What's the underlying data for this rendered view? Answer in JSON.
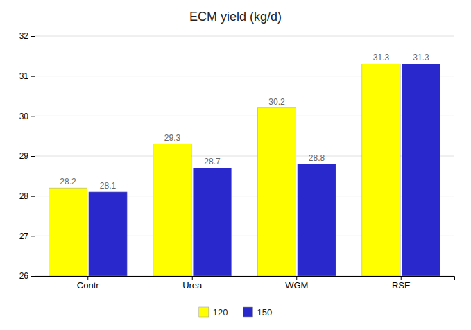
{
  "chart_data": {
    "type": "bar",
    "title": "ECM yield (kg/d)",
    "categories": [
      "Contr",
      "Urea",
      "WGM",
      "RSE"
    ],
    "series": [
      {
        "name": "120",
        "color": "#FFFF00",
        "values": [
          28.2,
          29.3,
          30.2,
          31.3
        ]
      },
      {
        "name": "150",
        "color": "#2828CC",
        "values": [
          28.1,
          28.7,
          28.8,
          31.3
        ]
      }
    ],
    "ylim": [
      26,
      32
    ],
    "yticks": [
      26,
      27,
      28,
      29,
      30,
      31,
      32
    ],
    "grid": true,
    "legend": "bottom",
    "data_labels": true
  }
}
